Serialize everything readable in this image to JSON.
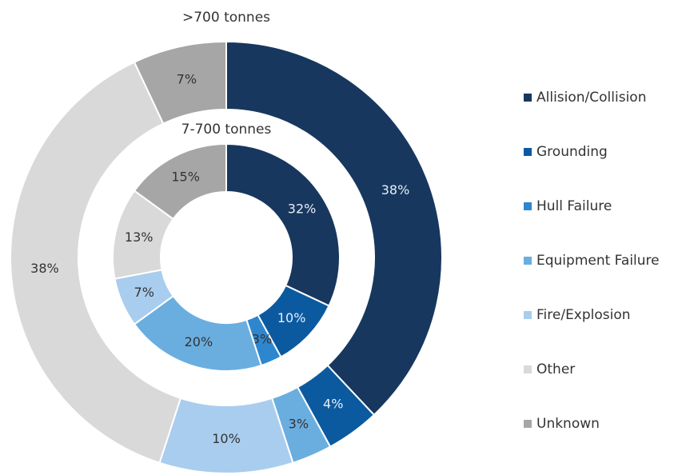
{
  "chart_data": {
    "type": "donut",
    "categories": [
      "Allision/Collision",
      "Grounding",
      "Hull Failure",
      "Equipment Failure",
      "Fire/Explosion",
      "Other",
      "Unknown"
    ],
    "colors": [
      "#17375e",
      "#0b5aa0",
      "#2e86cf",
      "#6aaee0",
      "#a9cdee",
      "#d9d9d9",
      "#a6a6a6"
    ],
    "series": [
      {
        "name": ">700 tonnes",
        "values": [
          38,
          4,
          0,
          3,
          10,
          38,
          7
        ],
        "value_labels": [
          "38%",
          "4%",
          null,
          "3%",
          "10%",
          "38%",
          "7%"
        ]
      },
      {
        "name": "7-700 tonnes",
        "values": [
          32,
          10,
          3,
          20,
          7,
          13,
          15
        ],
        "value_labels": [
          "32%",
          "10%",
          "3%",
          "20%",
          "7%",
          "13%",
          "15%"
        ]
      }
    ],
    "legend": "right"
  }
}
